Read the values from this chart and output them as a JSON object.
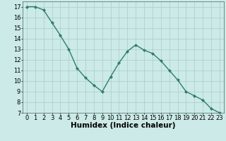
{
  "x": [
    0,
    1,
    2,
    3,
    4,
    5,
    6,
    7,
    8,
    9,
    10,
    11,
    12,
    13,
    14,
    15,
    16,
    17,
    18,
    19,
    20,
    21,
    22,
    23
  ],
  "y": [
    17,
    17,
    16.7,
    15.5,
    14.3,
    13,
    11.2,
    10.3,
    9.6,
    9,
    10.4,
    11.7,
    12.8,
    13.4,
    12.9,
    12.6,
    11.9,
    11,
    10.1,
    9,
    8.6,
    8.2,
    7.4,
    7
  ],
  "line_color": "#2e7d6e",
  "marker": "D",
  "marker_size": 2.0,
  "bg_color": "#cceae7",
  "grid_color": "#aaccca",
  "xlabel": "Humidex (Indice chaleur)",
  "xlabel_fontsize": 7.5,
  "ylim": [
    7,
    17.5
  ],
  "xlim": [
    -0.5,
    23.5
  ],
  "yticks": [
    7,
    8,
    9,
    10,
    11,
    12,
    13,
    14,
    15,
    16,
    17
  ],
  "xticks": [
    0,
    1,
    2,
    3,
    4,
    5,
    6,
    7,
    8,
    9,
    10,
    11,
    12,
    13,
    14,
    15,
    16,
    17,
    18,
    19,
    20,
    21,
    22,
    23
  ],
  "tick_fontsize": 6.0,
  "line_width": 1.0
}
